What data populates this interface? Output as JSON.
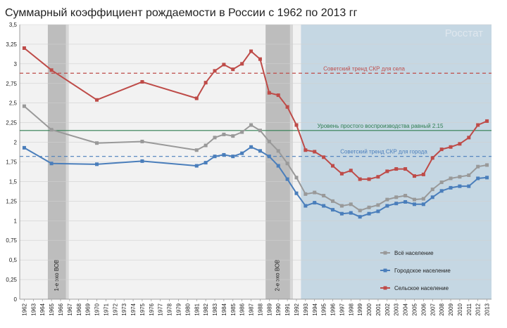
{
  "chart_data": {
    "type": "line",
    "title": "Суммарный коэффициент рождаемости в России с 1962 по 2013 гг",
    "source_label": "Росстат",
    "ylim": [
      0,
      3.5
    ],
    "y_ticks": [
      "0",
      "0,25",
      "0,5",
      "0,75",
      "1",
      "1,25",
      "1,5",
      "1,75",
      "2",
      "2,25",
      "2,5",
      "2,75",
      "3",
      "3,25",
      "3,5"
    ],
    "x_ticks": [
      "1962",
      "1963",
      "1964",
      "1965",
      "1966",
      "1967",
      "1968",
      "1969",
      "1970",
      "1971",
      "1972",
      "1973",
      "1974",
      "1975",
      "1976",
      "1977",
      "1978",
      "1979",
      "1980",
      "1981",
      "1982",
      "1983",
      "1984",
      "1985",
      "1986",
      "1987",
      "1988",
      "1989",
      "1990",
      "1991",
      "1992",
      "1993",
      "1994",
      "1995",
      "1996",
      "1997",
      "1998",
      "1999",
      "2000",
      "2001",
      "2002",
      "2003",
      "2004",
      "2005",
      "2006",
      "2007",
      "2008",
      "2009",
      "2010",
      "2011",
      "2012",
      "2013"
    ],
    "x_range": [
      1962,
      2013
    ],
    "series": [
      {
        "name": "Всё население",
        "color": "#999999",
        "x": [
          1962,
          1965,
          1970,
          1975,
          1981,
          1982,
          1983,
          1984,
          1985,
          1986,
          1987,
          1988,
          1989,
          1990,
          1991,
          1992,
          1993,
          1994,
          1995,
          1996,
          1997,
          1998,
          1999,
          2000,
          2001,
          2002,
          2003,
          2004,
          2005,
          2006,
          2007,
          2008,
          2009,
          2010,
          2011,
          2012,
          2013
        ],
        "values": [
          2.46,
          2.16,
          1.99,
          2.01,
          1.9,
          1.96,
          2.06,
          2.1,
          2.08,
          2.13,
          2.22,
          2.15,
          2.01,
          1.89,
          1.73,
          1.55,
          1.34,
          1.36,
          1.32,
          1.25,
          1.19,
          1.21,
          1.13,
          1.17,
          1.2,
          1.27,
          1.3,
          1.32,
          1.27,
          1.28,
          1.4,
          1.49,
          1.54,
          1.56,
          1.58,
          1.69,
          1.71
        ]
      },
      {
        "name": "Городское население",
        "color": "#4a7ebb",
        "x": [
          1962,
          1965,
          1970,
          1975,
          1981,
          1982,
          1983,
          1984,
          1985,
          1986,
          1987,
          1988,
          1989,
          1990,
          1991,
          1992,
          1993,
          1994,
          1995,
          1996,
          1997,
          1998,
          1999,
          2000,
          2001,
          2002,
          2003,
          2004,
          2005,
          2006,
          2007,
          2008,
          2009,
          2010,
          2011,
          2012,
          2013
        ],
        "values": [
          1.93,
          1.73,
          1.72,
          1.76,
          1.7,
          1.74,
          1.82,
          1.84,
          1.82,
          1.86,
          1.94,
          1.89,
          1.82,
          1.7,
          1.53,
          1.35,
          1.19,
          1.23,
          1.19,
          1.14,
          1.09,
          1.1,
          1.05,
          1.09,
          1.12,
          1.19,
          1.22,
          1.24,
          1.21,
          1.21,
          1.3,
          1.38,
          1.42,
          1.44,
          1.44,
          1.54,
          1.55
        ]
      },
      {
        "name": "Сельское население",
        "color": "#be4b48",
        "x": [
          1962,
          1965,
          1970,
          1975,
          1981,
          1982,
          1983,
          1984,
          1985,
          1986,
          1987,
          1988,
          1989,
          1990,
          1991,
          1992,
          1993,
          1994,
          1995,
          1996,
          1997,
          1998,
          1999,
          2000,
          2001,
          2002,
          2003,
          2004,
          2005,
          2006,
          2007,
          2008,
          2009,
          2010,
          2011,
          2012,
          2013
        ],
        "values": [
          3.2,
          2.92,
          2.54,
          2.77,
          2.56,
          2.76,
          2.91,
          2.99,
          2.93,
          3.0,
          3.16,
          3.06,
          2.63,
          2.6,
          2.45,
          2.22,
          1.9,
          1.88,
          1.81,
          1.7,
          1.6,
          1.64,
          1.53,
          1.53,
          1.56,
          1.63,
          1.66,
          1.66,
          1.57,
          1.59,
          1.8,
          1.91,
          1.94,
          1.98,
          2.06,
          2.22,
          2.27
        ]
      }
    ],
    "reference_lines": [
      {
        "label": "Советский тренд СКР для села",
        "value": 2.88,
        "color": "#be4b48",
        "dashed": true
      },
      {
        "label": "Уровень простого воспроизводства равный 2.15",
        "value": 2.15,
        "color": "#2e7d4f",
        "dashed": false
      },
      {
        "label": "Советский тренд СКР для города",
        "value": 1.82,
        "color": "#4a7ebb",
        "dashed": true
      }
    ],
    "bands": [
      {
        "label": "1-е эхо ВОВ",
        "from": 1964.6,
        "to": 1966.9
      },
      {
        "label": "2-е эхо ВОВ",
        "from": 1988.6,
        "to": 1991.6
      }
    ],
    "post_soviet_shade_from": 1992.5
  }
}
